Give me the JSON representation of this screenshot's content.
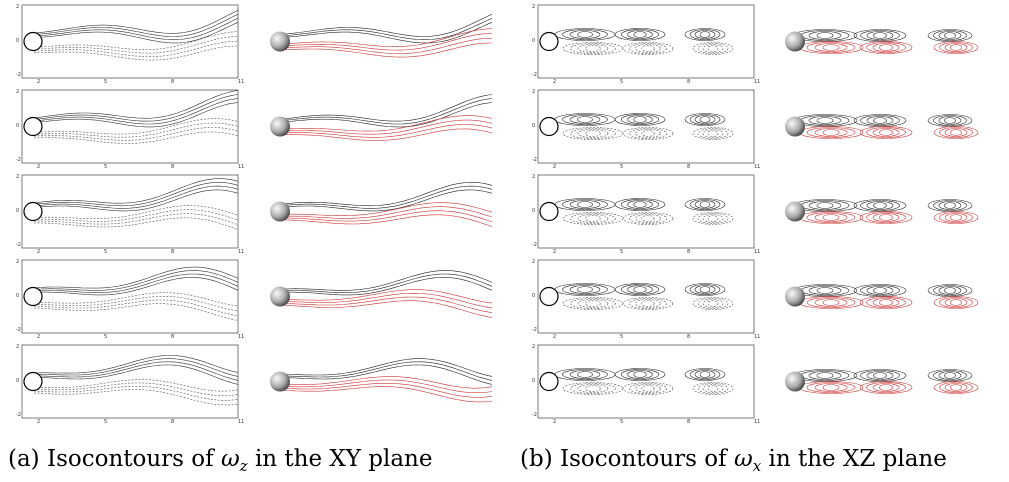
{
  "captions": [
    {
      "label": "(a)",
      "text_before": "Isocontours of",
      "symbol": "ω",
      "subscript": "z",
      "text_after": "in the XY plane"
    },
    {
      "label": "(b)",
      "text_before": "Isocontours of",
      "symbol": "ω",
      "subscript": "x",
      "text_after": "in the XZ plane"
    }
  ],
  "axes": {
    "xticks": [
      "2",
      "5",
      "8",
      "11"
    ],
    "yticks": [
      "2",
      "0",
      "-2"
    ]
  }
}
